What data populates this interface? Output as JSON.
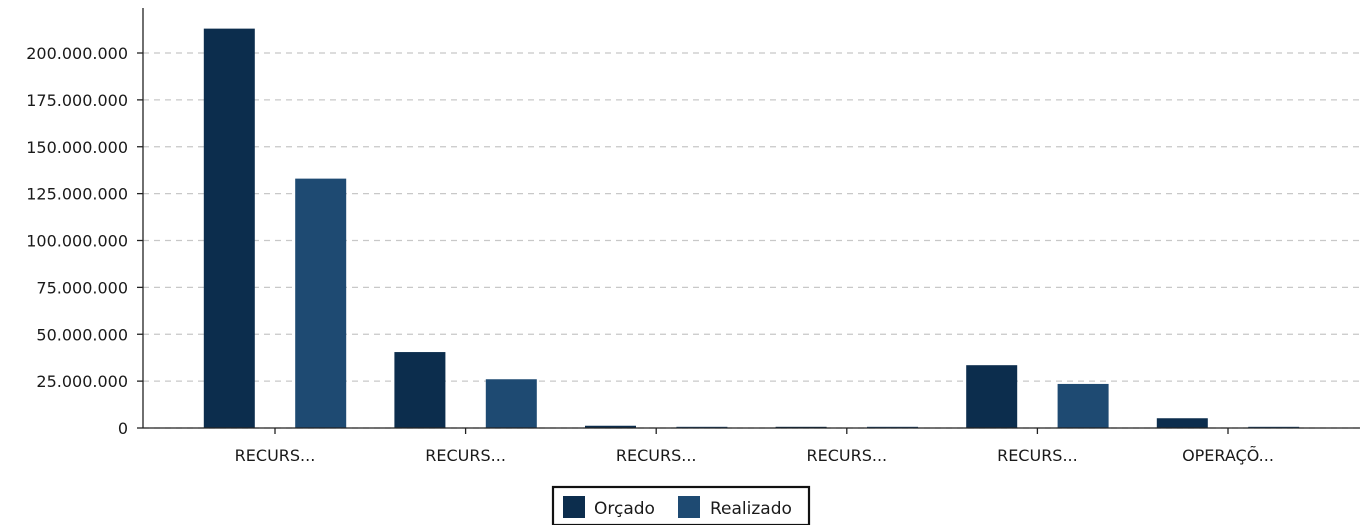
{
  "chart_data": {
    "type": "bar",
    "categories": [
      "RECURS...",
      "RECURS...",
      "RECURS...",
      "RECURS...",
      "RECURS...",
      "OPERAÇÕ..."
    ],
    "series": [
      {
        "name": "Orçado",
        "color": "#0c2d4d",
        "values": [
          213000000,
          40500000,
          1200000,
          500000,
          33500000,
          5200000
        ]
      },
      {
        "name": "Realizado",
        "color": "#1e4a72",
        "values": [
          133000000,
          26000000,
          300000,
          300000,
          23500000,
          300000
        ]
      }
    ],
    "y_ticks": [
      "0",
      "25.000.000",
      "50.000.000",
      "75.000.000",
      "100.000.000",
      "125.000.000",
      "150.000.000",
      "175.000.000",
      "200.000.000"
    ],
    "y_tick_values": [
      0,
      25000000,
      50000000,
      75000000,
      100000000,
      125000000,
      150000000,
      175000000,
      200000000
    ],
    "ylim": [
      0,
      222000000
    ],
    "grid": true,
    "grid_style": "dashed",
    "legend_position": "bottom-center",
    "title": "",
    "xlabel": "",
    "ylabel": ""
  }
}
